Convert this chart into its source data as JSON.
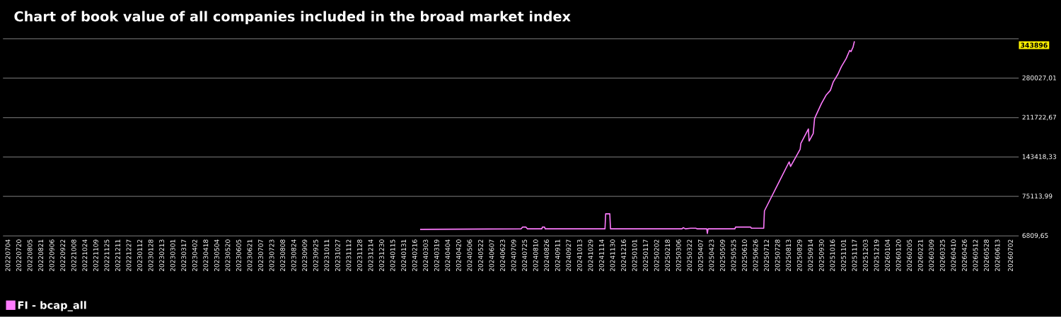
{
  "chart_data": {
    "type": "line",
    "title": "Chart of book value of all companies included in the broad market index",
    "x": [
      "2024-02-24",
      "2024-07-20",
      "2024-07-22",
      "2024-07-27",
      "2024-07-29",
      "2024-08-19",
      "2024-08-20",
      "2024-08-23",
      "2024-08-24",
      "2024-11-19",
      "2024-11-20",
      "2024-11-26",
      "2024-11-27",
      "2025-03-11",
      "2025-03-13",
      "2025-03-16",
      "2025-03-24",
      "2025-03-31",
      "2025-04-02",
      "2025-04-16",
      "2025-04-17",
      "2025-04-18",
      "2025-05-27",
      "2025-05-28",
      "2025-06-19",
      "2025-06-20",
      "2025-07-08",
      "2025-07-09",
      "2025-08-14",
      "2025-08-16",
      "2025-08-30",
      "2025-08-31",
      "2025-09-11",
      "2025-09-12",
      "2025-09-18",
      "2025-09-20",
      "2025-09-23",
      "2025-09-30",
      "2025-10-07",
      "2025-10-13",
      "2025-10-17",
      "2025-10-24",
      "2025-10-29",
      "2025-11-05",
      "2025-11-10",
      "2025-11-12",
      "2025-11-15",
      "2025-11-17"
    ],
    "series": [
      {
        "name": "FI - bcap_all",
        "color": "#ff7bff",
        "values": [
          18000,
          19000,
          22000,
          22000,
          19000,
          19000,
          22000,
          22000,
          19000,
          19000,
          45000,
          45000,
          19000,
          19000,
          21000,
          19000,
          20000,
          20000,
          19000,
          19000,
          11000,
          19000,
          19000,
          22000,
          22000,
          20000,
          20000,
          50000,
          135000,
          127000,
          157000,
          167000,
          192000,
          171000,
          184000,
          210000,
          218000,
          236000,
          251000,
          259000,
          273000,
          287000,
          300000,
          314000,
          328000,
          326000,
          334000,
          343896
        ]
      }
    ],
    "xlim": [
      "2022-06-27",
      "2026-07-14"
    ],
    "ylim": [
      6809.65,
      348331.35
    ],
    "yticks": [
      {
        "value": 6809.65,
        "label": "6809,65"
      },
      {
        "value": 75113.99,
        "label": "75113,99"
      },
      {
        "value": 143418.33,
        "label": "143418,33"
      },
      {
        "value": 211722.67,
        "label": "211722,67"
      },
      {
        "value": 280027.01,
        "label": "280027,01"
      },
      {
        "value": 348331.35,
        "label": null
      }
    ],
    "xticks": [
      {
        "value": "2022-07-04",
        "label": "20220704"
      },
      {
        "value": "2022-07-20",
        "label": "20220720"
      },
      {
        "value": "2022-08-05",
        "label": "20220805"
      },
      {
        "value": "2022-08-21",
        "label": "20220821"
      },
      {
        "value": "2022-09-06",
        "label": "20220906"
      },
      {
        "value": "2022-09-22",
        "label": "20220922"
      },
      {
        "value": "2022-10-08",
        "label": "20221008"
      },
      {
        "value": "2022-10-24",
        "label": "20221024"
      },
      {
        "value": "2022-11-09",
        "label": "20221109"
      },
      {
        "value": "2022-11-25",
        "label": "20221125"
      },
      {
        "value": "2022-12-11",
        "label": "20221211"
      },
      {
        "value": "2022-12-27",
        "label": "20221227"
      },
      {
        "value": "2023-01-12",
        "label": "20230112"
      },
      {
        "value": "2023-01-28",
        "label": "20230128"
      },
      {
        "value": "2023-02-13",
        "label": "20230213"
      },
      {
        "value": "2023-03-01",
        "label": "20230301"
      },
      {
        "value": "2023-03-17",
        "label": "20230317"
      },
      {
        "value": "2023-04-02",
        "label": "20230402"
      },
      {
        "value": "2023-04-18",
        "label": "20230418"
      },
      {
        "value": "2023-05-04",
        "label": "20230504"
      },
      {
        "value": "2023-05-20",
        "label": "20230520"
      },
      {
        "value": "2023-06-05",
        "label": "20230605"
      },
      {
        "value": "2023-06-21",
        "label": "20230621"
      },
      {
        "value": "2023-07-07",
        "label": "20230707"
      },
      {
        "value": "2023-07-23",
        "label": "20230723"
      },
      {
        "value": "2023-08-08",
        "label": "20230808"
      },
      {
        "value": "2023-08-24",
        "label": "20230824"
      },
      {
        "value": "2023-09-09",
        "label": "20230909"
      },
      {
        "value": "2023-09-25",
        "label": "20230925"
      },
      {
        "value": "2023-10-11",
        "label": "20231011"
      },
      {
        "value": "2023-10-27",
        "label": "20231027"
      },
      {
        "value": "2023-11-12",
        "label": "20231112"
      },
      {
        "value": "2023-11-28",
        "label": "20231128"
      },
      {
        "value": "2023-12-14",
        "label": "20231214"
      },
      {
        "value": "2023-12-30",
        "label": "20231230"
      },
      {
        "value": "2024-01-15",
        "label": "20240115"
      },
      {
        "value": "2024-01-31",
        "label": "20240131"
      },
      {
        "value": "2024-02-16",
        "label": "20240216"
      },
      {
        "value": "2024-03-03",
        "label": "20240303"
      },
      {
        "value": "2024-03-19",
        "label": "20240319"
      },
      {
        "value": "2024-04-04",
        "label": "20240404"
      },
      {
        "value": "2024-04-20",
        "label": "20240420"
      },
      {
        "value": "2024-05-06",
        "label": "20240506"
      },
      {
        "value": "2024-05-22",
        "label": "20240522"
      },
      {
        "value": "2024-06-07",
        "label": "20240607"
      },
      {
        "value": "2024-06-23",
        "label": "20240623"
      },
      {
        "value": "2024-07-09",
        "label": "20240709"
      },
      {
        "value": "2024-07-25",
        "label": "20240725"
      },
      {
        "value": "2024-08-10",
        "label": "20240810"
      },
      {
        "value": "2024-08-26",
        "label": "20240826"
      },
      {
        "value": "2024-09-11",
        "label": "20240911"
      },
      {
        "value": "2024-09-27",
        "label": "20240927"
      },
      {
        "value": "2024-10-13",
        "label": "20241013"
      },
      {
        "value": "2024-10-29",
        "label": "20241029"
      },
      {
        "value": "2024-11-14",
        "label": "20241114"
      },
      {
        "value": "2024-11-30",
        "label": "20241130"
      },
      {
        "value": "2024-12-16",
        "label": "20241216"
      },
      {
        "value": "2025-01-01",
        "label": "20250101"
      },
      {
        "value": "2025-01-17",
        "label": "20250117"
      },
      {
        "value": "2025-02-02",
        "label": "20250202"
      },
      {
        "value": "2025-02-18",
        "label": "20250218"
      },
      {
        "value": "2025-03-06",
        "label": "20250306"
      },
      {
        "value": "2025-03-22",
        "label": "20250322"
      },
      {
        "value": "2025-04-07",
        "label": "20250407"
      },
      {
        "value": "2025-04-23",
        "label": "20250423"
      },
      {
        "value": "2025-05-09",
        "label": "20250509"
      },
      {
        "value": "2025-05-25",
        "label": "20250525"
      },
      {
        "value": "2025-06-10",
        "label": "20250610"
      },
      {
        "value": "2025-06-26",
        "label": "20250626"
      },
      {
        "value": "2025-07-12",
        "label": "20250712"
      },
      {
        "value": "2025-07-28",
        "label": "20250728"
      },
      {
        "value": "2025-08-13",
        "label": "20250813"
      },
      {
        "value": "2025-08-29",
        "label": "20250829"
      },
      {
        "value": "2025-09-14",
        "label": "20250914"
      },
      {
        "value": "2025-09-30",
        "label": "20250930"
      },
      {
        "value": "2025-10-16",
        "label": "20251016"
      },
      {
        "value": "2025-11-01",
        "label": "20251101"
      },
      {
        "value": "2025-11-17",
        "label": "20251117"
      },
      {
        "value": "2025-12-03",
        "label": "20251203"
      },
      {
        "value": "2025-12-19",
        "label": "20251219"
      },
      {
        "value": "2026-01-04",
        "label": "20260104"
      },
      {
        "value": "2026-01-20",
        "label": "20260120"
      },
      {
        "value": "2026-02-05",
        "label": "20260205"
      },
      {
        "value": "2026-02-21",
        "label": "20260221"
      },
      {
        "value": "2026-03-09",
        "label": "20260309"
      },
      {
        "value": "2026-03-25",
        "label": "20260325"
      },
      {
        "value": "2026-04-10",
        "label": "20260410"
      },
      {
        "value": "2026-04-26",
        "label": "20260426"
      },
      {
        "value": "2026-05-12",
        "label": "20260512"
      },
      {
        "value": "2026-05-28",
        "label": "20260528"
      },
      {
        "value": "2026-06-13",
        "label": "20260613"
      },
      {
        "value": "2026-07-02",
        "label": "20260702"
      }
    ],
    "annotations": [
      "343896"
    ],
    "grid": "y",
    "legend": "bottom left"
  }
}
